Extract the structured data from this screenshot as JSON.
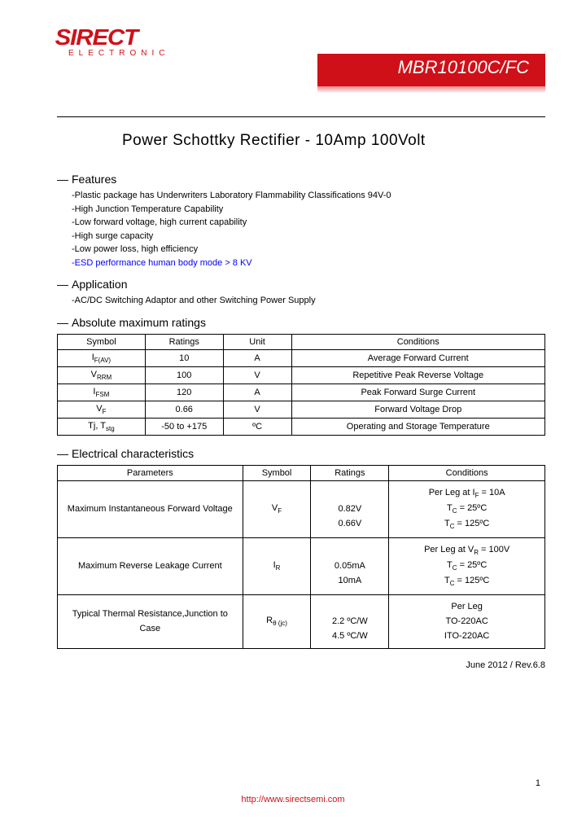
{
  "logo": {
    "brand": "SIRECT",
    "tagline": "ELECTRONIC"
  },
  "part_number": "MBR10100C/FC",
  "title": "Power Schottky Rectifier - 10Amp 100Volt",
  "features": {
    "heading": "Features",
    "items": [
      "-Plastic package has Underwriters Laboratory Flammability Classifications 94V-0",
      "-High Junction Temperature Capability",
      "-Low forward voltage, high current capability",
      "-High surge capacity",
      "-Low power loss, high efficiency"
    ],
    "esd_item": "-ESD performance human body mode > 8 KV"
  },
  "application": {
    "heading": "Application",
    "items": [
      "-AC/DC Switching Adaptor and other Switching Power Supply"
    ]
  },
  "abs_max": {
    "heading": "Absolute maximum ratings",
    "columns": [
      "Symbol",
      "Ratings",
      "Unit",
      "Conditions"
    ],
    "rows": [
      {
        "symbol_html": "I<span class='sub'>F(AV)</span>",
        "rating": "10",
        "unit": "A",
        "cond": "Average Forward Current"
      },
      {
        "symbol_html": "V<span class='sub'>RRM</span>",
        "rating": "100",
        "unit": "V",
        "cond": "Repetitive Peak Reverse Voltage"
      },
      {
        "symbol_html": "I<span class='sub'>FSM</span>",
        "rating": "120",
        "unit": "A",
        "cond": "Peak Forward Surge Current"
      },
      {
        "symbol_html": "V<span class='sub'>F</span>",
        "rating": "0.66",
        "unit": "V",
        "cond": "Forward Voltage Drop"
      },
      {
        "symbol_html": "Tj, T<span class='sub'>stg</span>",
        "rating": "-50 to +175",
        "unit": "ºC",
        "cond": "Operating and Storage Temperature"
      }
    ]
  },
  "elec": {
    "heading": "Electrical characteristics",
    "columns": [
      "Parameters",
      "Symbol",
      "Ratings",
      "Conditions"
    ],
    "rows": [
      {
        "param": "Maximum Instantaneous Forward Voltage",
        "symbol_html": "V<span class='sub'>F</span>",
        "ratings_html": "<br>0.82V<br>0.66V",
        "cond_html": "Per Leg at I<span class='sub'>F</span> = 10A<br>T<span class='sub'>C</span> = 25ºC<br>T<span class='sub'>C</span> = 125ºC"
      },
      {
        "param": "Maximum Reverse Leakage Current",
        "symbol_html": "I<span class='sub'>R</span>",
        "ratings_html": "<br>0.05mA<br>10mA",
        "cond_html": "Per Leg at V<span class='sub'>R</span> = 100V<br>T<span class='sub'>C</span> = 25ºC<br>T<span class='sub'>C</span> = 125ºC"
      },
      {
        "param": "Typical Thermal Resistance,Junction to Case",
        "symbol_html": "R<span class='sub'>θ (jc)</span>",
        "ratings_html": "<br>2.2 ºC/W<br>4.5 ºC/W",
        "cond_html": "Per Leg<br>TO-220AC<br>ITO-220AC"
      }
    ]
  },
  "footer": {
    "rev": "June 2012 / Rev.6.8",
    "url": "http://www.sirectsemi.com",
    "page": "1"
  },
  "colors": {
    "brand_red": "#d01018",
    "link_blue": "#0000ff",
    "text": "#000000",
    "bg": "#ffffff"
  }
}
